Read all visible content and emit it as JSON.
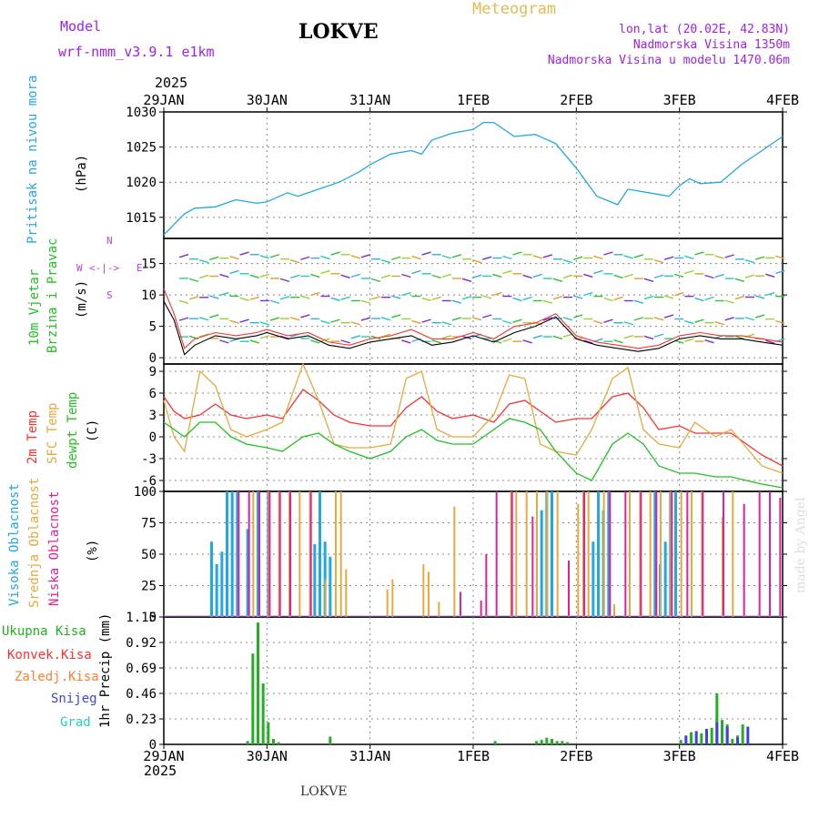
{
  "header": {
    "model_label": "Model",
    "model_name": "wrf-nmm_v3.9.1 e1km",
    "station": "LOKVE",
    "meteogram": "Meteogram",
    "lonlat": "lon,lat (20.02E, 42.83N)",
    "altitude": "Nadmorska Visina 1350m",
    "model_altitude": "Nadmorska Visina u modelu 1470.06m",
    "watermark": "made by Angel",
    "footer_station": "LOKVE"
  },
  "time_axis": {
    "year": "2025",
    "ticks": [
      "29JAN",
      "30JAN",
      "31JAN",
      "1FEB",
      "2FEB",
      "3FEB",
      "4FEB"
    ]
  },
  "colors": {
    "pressure": "#22a8e0",
    "wind_line": "#000000",
    "wind_gust": "#ff3030",
    "temp2m": "#ff3030",
    "sfc_temp": "#e6a93c",
    "dewpoint": "#22c022",
    "cloud_high": "#22a8e0",
    "cloud_mid": "#e6a93c",
    "cloud_low": "#e0209a",
    "precip_total": "#22b022",
    "precip_conv": "#ff3030",
    "precip_snow": "#4040e0"
  },
  "panels": {
    "pressure": {
      "ylabel": "Pritisak na nivou mora",
      "unit": "(hPa)",
      "ticks": [
        "1030",
        "1025",
        "1020",
        "1015"
      ],
      "ylim": [
        1012,
        1030
      ]
    },
    "wind": {
      "ylabel1": "10m Vjetar",
      "ylabel2": "Brzina i Pravac",
      "unit": "(m/s)",
      "ticks": [
        "15",
        "10",
        "5",
        "0"
      ],
      "ylim": [
        -1,
        19
      ],
      "compass": {
        "n": "N",
        "s": "S",
        "e": "E",
        "w": "W"
      }
    },
    "temp": {
      "ylabel1": "2m Temp",
      "ylabel2": "SFC Temp",
      "ylabel3": "dewpt Temp",
      "unit": "(C)",
      "ticks": [
        "9",
        "6",
        "3",
        "0",
        "-3",
        "-6"
      ],
      "ylim": [
        -7.5,
        10
      ]
    },
    "cloud": {
      "ylabel1": "Visoka Oblacnost",
      "ylabel2": "Srednja Oblacnost",
      "ylabel3": "Niska Oblacnost",
      "unit": "(%)",
      "ticks": [
        "100",
        "75",
        "50",
        "25",
        "0"
      ],
      "ylim": [
        0,
        100
      ]
    },
    "precip": {
      "legend": [
        "Ukupna Kisa",
        "Konvek.Kisa",
        "Zaledj.Kisa",
        "Snijeg",
        "Grad"
      ],
      "unit": "1hr Precip (mm)",
      "ticks": [
        "1.15",
        "0.92",
        "0.69",
        "0.46",
        "0.23",
        "0"
      ],
      "ylim": [
        0,
        1.15
      ]
    }
  },
  "chart_data": [
    {
      "type": "line",
      "title": "Pritisak na nivou mora",
      "ylabel": "(hPa)",
      "x_days": [
        0,
        0.1,
        0.2,
        0.3,
        0.5,
        0.7,
        0.9,
        1.0,
        1.2,
        1.3,
        1.5,
        1.7,
        1.9,
        2.0,
        2.2,
        2.4,
        2.5,
        2.6,
        2.8,
        3.0,
        3.1,
        3.2,
        3.4,
        3.6,
        3.8,
        4.0,
        4.2,
        4.4,
        4.5,
        4.7,
        4.9,
        5.0,
        5.1,
        5.2,
        5.4,
        5.6,
        5.8,
        6.0
      ],
      "values": [
        1012.5,
        1014,
        1015.5,
        1016.3,
        1016.5,
        1017.5,
        1017,
        1017.2,
        1018.5,
        1018,
        1019,
        1020,
        1021.5,
        1022.5,
        1024,
        1024.5,
        1024,
        1026,
        1027,
        1027.5,
        1028.5,
        1028.5,
        1026.5,
        1026.8,
        1025.5,
        1022,
        1018,
        1016.8,
        1019,
        1018.5,
        1018,
        1019.5,
        1020.5,
        1019.8,
        1020,
        1022.5,
        1024.5,
        1026.5
      ]
    },
    {
      "type": "line",
      "title": "10m Vjetar Brzina i Pravac",
      "ylabel": "(m/s)",
      "series": [
        {
          "name": "speed",
          "x_days": [
            0,
            0.1,
            0.2,
            0.3,
            0.5,
            0.7,
            0.9,
            1.0,
            1.2,
            1.4,
            1.6,
            1.8,
            2.0,
            2.2,
            2.4,
            2.6,
            2.8,
            3.0,
            3.2,
            3.4,
            3.6,
            3.8,
            4.0,
            4.2,
            4.4,
            4.6,
            4.8,
            5.0,
            5.2,
            5.4,
            5.6,
            5.8,
            6.0
          ],
          "values": [
            9,
            6,
            0.5,
            2,
            3.5,
            3,
            3.5,
            4,
            3,
            3.5,
            2,
            1.5,
            2.5,
            3,
            3.5,
            2,
            2.5,
            3.5,
            2.5,
            4,
            5,
            6.5,
            3,
            2,
            1.5,
            1,
            1.5,
            3,
            3.5,
            3,
            3,
            2.5,
            2
          ]
        },
        {
          "name": "gust",
          "x_days": [
            0,
            0.1,
            0.2,
            0.3,
            0.5,
            0.7,
            0.9,
            1.0,
            1.2,
            1.4,
            1.6,
            1.8,
            2.0,
            2.2,
            2.4,
            2.6,
            2.8,
            3.0,
            3.2,
            3.4,
            3.6,
            3.8,
            4.0,
            4.2,
            4.4,
            4.6,
            4.8,
            5.0,
            5.2,
            5.4,
            5.6,
            5.8,
            6.0
          ],
          "values": [
            11,
            7,
            1.5,
            3,
            4,
            3.5,
            4,
            4.5,
            3.5,
            4,
            2.5,
            2,
            3,
            3.5,
            4.5,
            3,
            3,
            4,
            3,
            5,
            5.5,
            7,
            3.5,
            2.5,
            2,
            1.5,
            2,
            3.5,
            4,
            3.5,
            3.5,
            3,
            2.5
          ]
        }
      ]
    },
    {
      "type": "line",
      "title": "2m Temp / SFC Temp / dewpt Temp",
      "ylabel": "(C)",
      "x_days": [
        0,
        0.1,
        0.2,
        0.35,
        0.5,
        0.65,
        0.8,
        1.0,
        1.15,
        1.35,
        1.5,
        1.65,
        1.8,
        2.0,
        2.2,
        2.35,
        2.5,
        2.65,
        2.8,
        3.0,
        3.2,
        3.35,
        3.5,
        3.65,
        3.8,
        4.0,
        4.15,
        4.35,
        4.5,
        4.65,
        4.8,
        5.0,
        5.15,
        5.35,
        5.5,
        5.65,
        5.8,
        6.0
      ],
      "series": [
        {
          "name": "2m Temp",
          "values": [
            5.5,
            3.5,
            2.5,
            3,
            4.5,
            3,
            2.5,
            3,
            2.5,
            6.5,
            5,
            3,
            2,
            1.5,
            1.5,
            4,
            5.5,
            3.5,
            2.5,
            3,
            2,
            4.5,
            5,
            3.5,
            2,
            2.5,
            2.5,
            5.5,
            6,
            4,
            1,
            1.5,
            0.5,
            0.5,
            0.5,
            -1,
            -2.5,
            -4
          ]
        },
        {
          "name": "SFC Temp",
          "values": [
            5,
            0,
            -2,
            9,
            7,
            1,
            0,
            1,
            2,
            10,
            5,
            -1,
            -1.5,
            -1.5,
            -1,
            8,
            9,
            1,
            0,
            0,
            3,
            8.5,
            8,
            -1,
            -2,
            -2.5,
            1,
            8,
            9.5,
            1,
            -1,
            -1.5,
            2,
            0,
            1,
            -1.5,
            -4,
            -5
          ]
        },
        {
          "name": "dewpt Temp",
          "values": [
            2,
            1,
            0,
            2,
            2,
            0,
            -1,
            -1.5,
            -2,
            0,
            0.5,
            -1,
            -2,
            -3,
            -2,
            0,
            1,
            -0.5,
            -1,
            -1,
            1,
            2.5,
            2,
            1,
            -2,
            -5,
            -6,
            -1,
            0.5,
            -1,
            -4,
            -5,
            -5,
            -5.5,
            -5.5,
            -6,
            -6.5,
            -7
          ]
        }
      ]
    },
    {
      "type": "bar",
      "title": "Oblacnost",
      "ylabel": "(%)",
      "series": [
        {
          "name": "Visoka Oblacnost",
          "x_days": [
            0.45,
            0.5,
            0.55,
            0.6,
            0.65,
            0.7,
            0.8,
            0.9,
            1.0,
            1.45,
            1.5,
            1.55,
            1.6,
            3.65,
            3.7,
            3.75,
            4.15,
            4.2,
            4.25,
            4.3,
            4.75,
            4.8,
            4.85,
            4.9,
            4.95
          ],
          "values": [
            60,
            42,
            52,
            100,
            100,
            100,
            70,
            100,
            100,
            58,
            100,
            60,
            48,
            85,
            100,
            100,
            60,
            100,
            85,
            100,
            100,
            42,
            60,
            100,
            100
          ]
        },
        {
          "name": "Srednja Oblacnost",
          "x_days": [
            0.85,
            1.0,
            1.1,
            1.2,
            1.3,
            1.4,
            1.55,
            1.65,
            1.7,
            1.75,
            2.15,
            2.2,
            2.5,
            2.55,
            2.65,
            2.8,
            3.35,
            3.4,
            3.5,
            3.6,
            3.7,
            3.8,
            4.0,
            4.05,
            4.1,
            4.25,
            4.35,
            4.5,
            4.6,
            4.7,
            4.8,
            4.9,
            5.0,
            5.1,
            5.2,
            5.4,
            5.5
          ],
          "values": [
            100,
            100,
            100,
            100,
            100,
            100,
            30,
            100,
            100,
            38,
            22,
            30,
            42,
            36,
            12,
            88,
            100,
            100,
            100,
            100,
            100,
            100,
            90,
            100,
            100,
            100,
            10,
            100,
            100,
            100,
            100,
            100,
            100,
            100,
            100,
            80,
            100
          ]
        },
        {
          "name": "Niska Oblacnost",
          "x_days": [
            0.7,
            0.8,
            0.9,
            1.0,
            1.1,
            1.2,
            1.4,
            2.85,
            3.05,
            3.1,
            3.2,
            3.35,
            3.55,
            3.9,
            4.05,
            4.3,
            4.45,
            4.6,
            4.75,
            4.9,
            5.05,
            5.2,
            5.4,
            5.6,
            5.75,
            5.85,
            5.95
          ],
          "values": [
            100,
            100,
            100,
            100,
            100,
            100,
            100,
            20,
            13,
            50,
            100,
            100,
            80,
            45,
            100,
            100,
            100,
            100,
            100,
            100,
            100,
            100,
            100,
            90,
            100,
            100,
            95
          ]
        }
      ]
    },
    {
      "type": "bar",
      "title": "1hr Precip",
      "ylabel": "(mm)",
      "series": [
        {
          "name": "Ukupna Kisa",
          "x_days": [
            0.8,
            0.85,
            0.9,
            0.95,
            1.0,
            1.05,
            1.1,
            1.6,
            3.2,
            3.6,
            3.65,
            3.7,
            3.75,
            3.8,
            3.85,
            3.9,
            5.0,
            5.1,
            5.2,
            5.3,
            5.35,
            5.4,
            5.45,
            5.5,
            5.55,
            5.6
          ],
          "values": [
            0.03,
            0.82,
            1.1,
            0.55,
            0.2,
            0.05,
            0.02,
            0.07,
            0.03,
            0.03,
            0.04,
            0.06,
            0.05,
            0.03,
            0.03,
            0.02,
            0.04,
            0.11,
            0.1,
            0.15,
            0.46,
            0.22,
            0.18,
            0.05,
            0.08,
            0.18
          ]
        },
        {
          "name": "Snijeg",
          "x_days": [
            5.05,
            5.15,
            5.25,
            5.35,
            5.45,
            5.55,
            5.65
          ],
          "values": [
            0.08,
            0.12,
            0.14,
            0.2,
            0.16,
            0.06,
            0.16
          ]
        }
      ]
    }
  ]
}
